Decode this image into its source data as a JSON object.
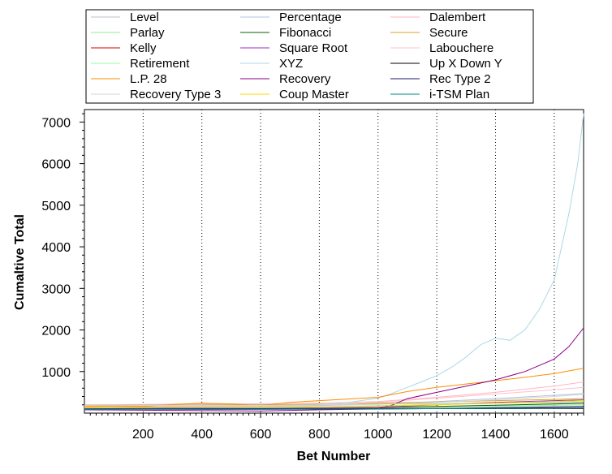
{
  "chart_data": {
    "type": "line",
    "title": "",
    "xlabel": "Bet Number",
    "ylabel": "Cumaltive Total",
    "xlim": [
      0,
      1700
    ],
    "ylim": [
      0,
      7300
    ],
    "x_ticks": [
      200,
      400,
      600,
      800,
      1000,
      1200,
      1400,
      1600
    ],
    "y_ticks": [
      1000,
      2000,
      3000,
      4000,
      5000,
      6000,
      7000
    ],
    "x_grid": true,
    "y_grid": false,
    "legend_position": "top",
    "legend_columns": 3,
    "series": [
      {
        "name": "Level",
        "color": "#c0c0c0",
        "x": [
          0,
          200,
          400,
          600,
          800,
          1000,
          1200,
          1400,
          1600,
          1700
        ],
        "values": [
          200,
          195,
          205,
          200,
          210,
          220,
          230,
          240,
          250,
          255
        ]
      },
      {
        "name": "Percentage",
        "color": "#b0c4de",
        "x": [
          0,
          200,
          400,
          600,
          800,
          1000,
          1200,
          1400,
          1600,
          1700
        ],
        "values": [
          150,
          160,
          165,
          170,
          180,
          220,
          280,
          350,
          430,
          470
        ]
      },
      {
        "name": "Dalembert",
        "color": "#ffb6c1",
        "x": [
          0,
          200,
          400,
          600,
          800,
          1000,
          1200,
          1400,
          1600,
          1700
        ],
        "values": [
          200,
          210,
          220,
          225,
          240,
          280,
          380,
          500,
          650,
          750
        ]
      },
      {
        "name": "Parlay",
        "color": "#90ee90",
        "x": [
          0,
          200,
          400,
          600,
          800,
          1000,
          1200,
          1400,
          1600,
          1700
        ],
        "values": [
          120,
          115,
          120,
          110,
          125,
          130,
          150,
          170,
          190,
          200
        ]
      },
      {
        "name": "Fibonacci",
        "color": "#006400",
        "x": [
          0,
          200,
          400,
          600,
          800,
          1000,
          1200,
          1400,
          1600,
          1700
        ],
        "values": [
          100,
          105,
          110,
          105,
          115,
          130,
          160,
          190,
          220,
          240
        ]
      },
      {
        "name": "Secure",
        "color": "#daa520",
        "x": [
          0,
          200,
          400,
          600,
          800,
          1000,
          1200,
          1400,
          1600,
          1700
        ],
        "values": [
          180,
          190,
          195,
          200,
          215,
          240,
          270,
          300,
          330,
          350
        ]
      },
      {
        "name": "Kelly",
        "color": "#e00000",
        "x": [
          0,
          200,
          400,
          600,
          800,
          1000,
          1200,
          1400,
          1600,
          1700
        ],
        "values": [
          100,
          102,
          104,
          103,
          106,
          110,
          115,
          120,
          125,
          128
        ]
      },
      {
        "name": "Square Root",
        "color": "#9932cc",
        "x": [
          0,
          200,
          400,
          600,
          800,
          1000,
          1200,
          1400,
          1600,
          1700
        ],
        "values": [
          110,
          115,
          120,
          115,
          125,
          140,
          200,
          260,
          300,
          320
        ]
      },
      {
        "name": "Labouchere",
        "color": "#ffc0cb",
        "x": [
          0,
          200,
          400,
          600,
          800,
          1000,
          1200,
          1400,
          1600,
          1700
        ],
        "values": [
          160,
          170,
          180,
          185,
          200,
          260,
          360,
          460,
          560,
          620
        ]
      },
      {
        "name": "Retirement",
        "color": "#98fb98",
        "x": [
          0,
          200,
          400,
          600,
          800,
          1000,
          1200,
          1400,
          1600,
          1700
        ],
        "values": [
          140,
          145,
          150,
          150,
          160,
          180,
          210,
          240,
          270,
          290
        ]
      },
      {
        "name": "XYZ",
        "color": "#add8e6",
        "x": [
          0,
          100,
          200,
          300,
          400,
          500,
          600,
          700,
          800,
          900,
          1000,
          1050,
          1100,
          1150,
          1200,
          1250,
          1300,
          1350,
          1400,
          1450,
          1500,
          1550,
          1600,
          1650,
          1680,
          1700
        ],
        "values": [
          120,
          130,
          150,
          140,
          160,
          150,
          140,
          170,
          200,
          260,
          360,
          480,
          620,
          760,
          900,
          1100,
          1350,
          1650,
          1800,
          1750,
          2000,
          2500,
          3200,
          4800,
          6000,
          7200
        ]
      },
      {
        "name": "Up X Down Y",
        "color": "#000000",
        "x": [
          0,
          200,
          400,
          600,
          800,
          1000,
          1200,
          1400,
          1600,
          1700
        ],
        "values": [
          100,
          100,
          102,
          101,
          103,
          105,
          108,
          110,
          112,
          114
        ]
      },
      {
        "name": "L.P. 28",
        "color": "#ff8c00",
        "x": [
          0,
          100,
          200,
          300,
          400,
          500,
          600,
          700,
          800,
          900,
          1000,
          1100,
          1200,
          1300,
          1400,
          1500,
          1600,
          1700
        ],
        "values": [
          150,
          170,
          160,
          210,
          240,
          220,
          180,
          260,
          300,
          340,
          380,
          520,
          620,
          700,
          780,
          860,
          950,
          1080
        ]
      },
      {
        "name": "Recovery",
        "color": "#8b008b",
        "x": [
          0,
          200,
          400,
          600,
          800,
          1000,
          1050,
          1100,
          1200,
          1300,
          1400,
          1500,
          1600,
          1650,
          1700
        ],
        "values": [
          80,
          70,
          60,
          50,
          80,
          100,
          200,
          350,
          500,
          650,
          800,
          1000,
          1300,
          1600,
          2050
        ]
      },
      {
        "name": "Rec Type 2",
        "color": "#191970",
        "x": [
          0,
          200,
          400,
          600,
          800,
          1000,
          1200,
          1400,
          1600,
          1700
        ],
        "values": [
          100,
          95,
          90,
          92,
          95,
          100,
          110,
          130,
          150,
          160
        ]
      },
      {
        "name": "Recovery Type 3",
        "color": "#d3d3d3",
        "x": [
          0,
          200,
          400,
          600,
          800,
          1000,
          1200,
          1400,
          1600,
          1700
        ],
        "values": [
          180,
          185,
          190,
          185,
          195,
          210,
          260,
          320,
          400,
          450
        ]
      },
      {
        "name": "Coup Master",
        "color": "#ffd700",
        "x": [
          0,
          200,
          400,
          600,
          800,
          1000,
          1200,
          1400,
          1600,
          1700
        ],
        "values": [
          130,
          135,
          140,
          140,
          150,
          170,
          200,
          240,
          280,
          300
        ]
      },
      {
        "name": "i-TSM Plan",
        "color": "#008b8b",
        "x": [
          0,
          200,
          400,
          600,
          800,
          1000,
          1200,
          1400,
          1600,
          1700
        ],
        "values": [
          90,
          92,
          95,
          94,
          98,
          102,
          108,
          115,
          120,
          125
        ]
      }
    ]
  }
}
